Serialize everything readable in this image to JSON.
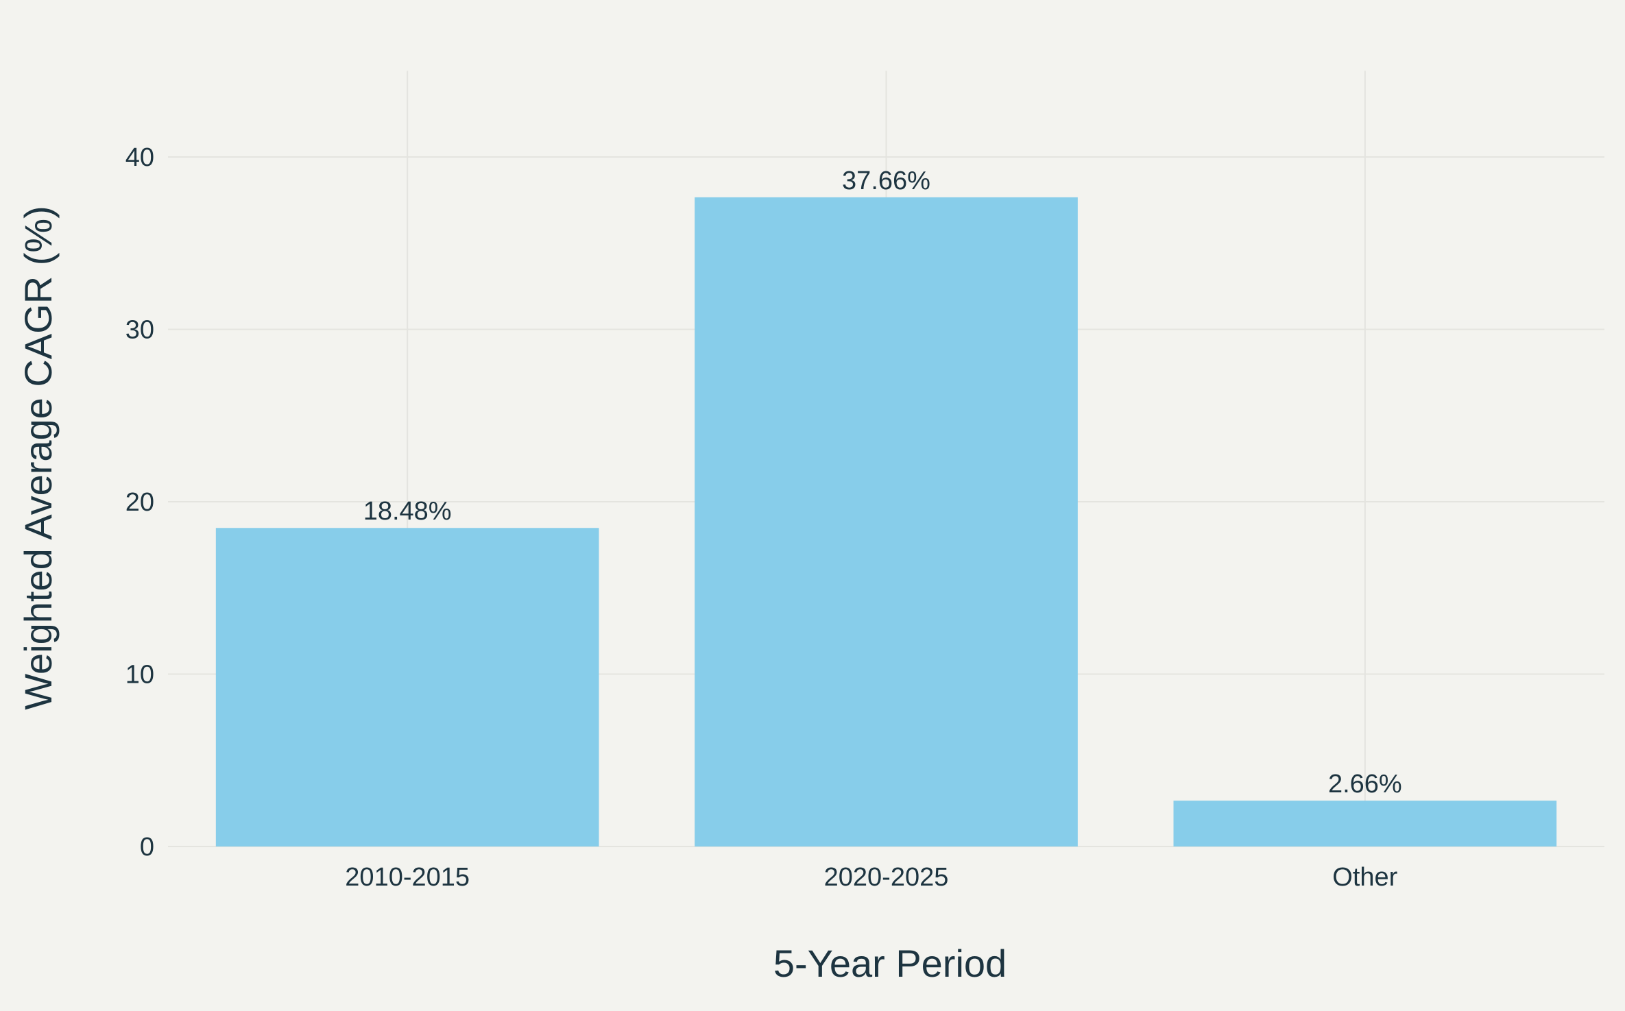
{
  "chart_data": {
    "type": "bar",
    "categories": [
      "2010-2015",
      "2020-2025",
      "Other"
    ],
    "values": [
      18.48,
      37.66,
      2.66
    ],
    "data_labels": [
      "18.48%",
      "37.66%",
      "2.66%"
    ],
    "title": "",
    "xlabel": "5-Year Period",
    "ylabel": "Weighted Average CAGR (%)",
    "ylim": [
      0,
      45
    ],
    "yticks": [
      0,
      10,
      20,
      30,
      40
    ],
    "grid": true,
    "legend": "none",
    "colors": {
      "bar": "#87cdea",
      "background": "#f3f3ef",
      "text": "#1d3440",
      "grid": "#e4e4df"
    }
  }
}
